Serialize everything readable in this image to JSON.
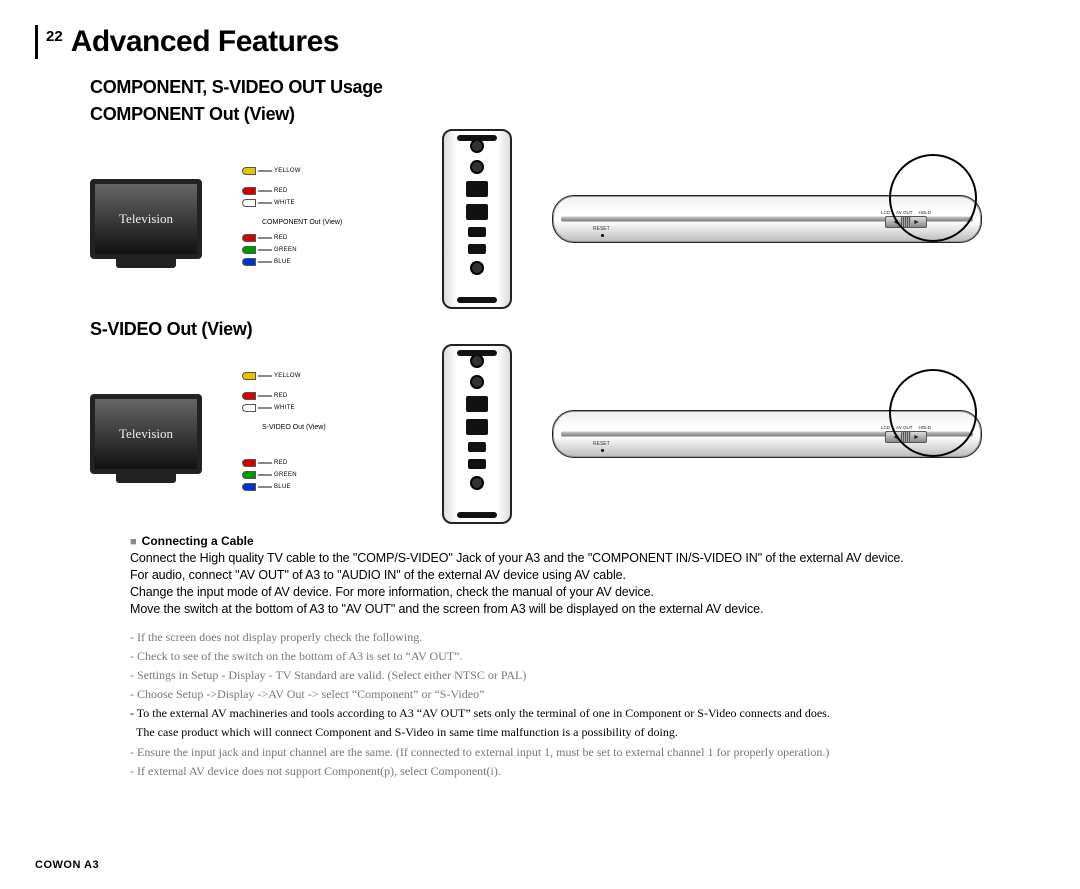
{
  "page": {
    "number": "22",
    "title": "Advanced Features"
  },
  "section_title": "COMPONENT, S-VIDEO OUT Usage",
  "component_view": {
    "title": "COMPONENT Out (View)",
    "tv_label": "Television",
    "mid_label": "COMPONENT Out (View)",
    "cables_top": [
      {
        "color": "#e6c200",
        "label": "YELLOW"
      }
    ],
    "cables_audio": [
      {
        "color": "#d40000",
        "label": "RED"
      },
      {
        "color": "#ffffff",
        "label": "WHITE"
      }
    ],
    "cables_video": [
      {
        "color": "#d40000",
        "label": "RED"
      },
      {
        "color": "#009900",
        "label": "GREEN"
      },
      {
        "color": "#0033cc",
        "label": "BLUE"
      }
    ]
  },
  "svideo_view": {
    "title": "S-VIDEO Out (View)",
    "tv_label": "Television",
    "mid_label": "S-VIDEO Out (View)",
    "cables_top": [
      {
        "color": "#e6c200",
        "label": "YELLOW"
      }
    ],
    "cables_audio": [
      {
        "color": "#d40000",
        "label": "RED"
      },
      {
        "color": "#ffffff",
        "label": "WHITE"
      }
    ],
    "cables_unused": [
      {
        "color": "#d40000",
        "label": "RED"
      },
      {
        "color": "#009900",
        "label": "GREEN"
      },
      {
        "color": "#0033cc",
        "label": "BLUE"
      }
    ]
  },
  "device_bottom": {
    "reset": "RESET",
    "switch_labels": [
      "LCD",
      "AV OUT",
      "HOLD"
    ]
  },
  "instructions": {
    "heading": "Connecting a Cable",
    "body": "Connect the High quality TV cable to the \"COMP/S-VIDEO\" Jack of your A3 and the \"COMPONENT IN/S-VIDEO IN\" of the external AV device.\nFor audio, connect \"AV OUT\" of A3 to \"AUDIO IN\" of the external AV device using AV cable.\nChange the input mode of AV device. For more information, check the manual of your AV device.\nMove the switch at the bottom of A3 to \"AV OUT\" and the screen from A3 will be displayed on the external AV device."
  },
  "notes": [
    {
      "text": "- If the screen does not display properly check the following.",
      "bold": false
    },
    {
      "text": "- Check to see of the switch on the bottom of A3 is set to “AV OUT”.",
      "bold": false
    },
    {
      "text": "- Settings in Setup - Display - TV Standard are valid. (Select either NTSC or PAL)",
      "bold": false
    },
    {
      "text": "- Choose Setup ->Display ->AV Out -> select “Component” or “S-Video”",
      "bold": false
    },
    {
      "text": "- To the external AV machineries and tools according to A3 “AV OUT” sets only the terminal of one in Component or S-Video connects and does.",
      "bold": true
    },
    {
      "text": "  The case product which will connect Component and S-Video in same time malfunction is a possibility of doing.",
      "bold": true
    },
    {
      "text": "- Ensure the input jack and input channel are the same. (If connected to external input 1, must be set to external channel 1 for properly operation.)",
      "bold": false
    },
    {
      "text": "- If external AV device does not support Component(p), select Component(i).",
      "bold": false
    }
  ],
  "footer": "COWON A3",
  "colors": {
    "text": "#000000",
    "muted": "#777777",
    "bg": "#ffffff"
  }
}
